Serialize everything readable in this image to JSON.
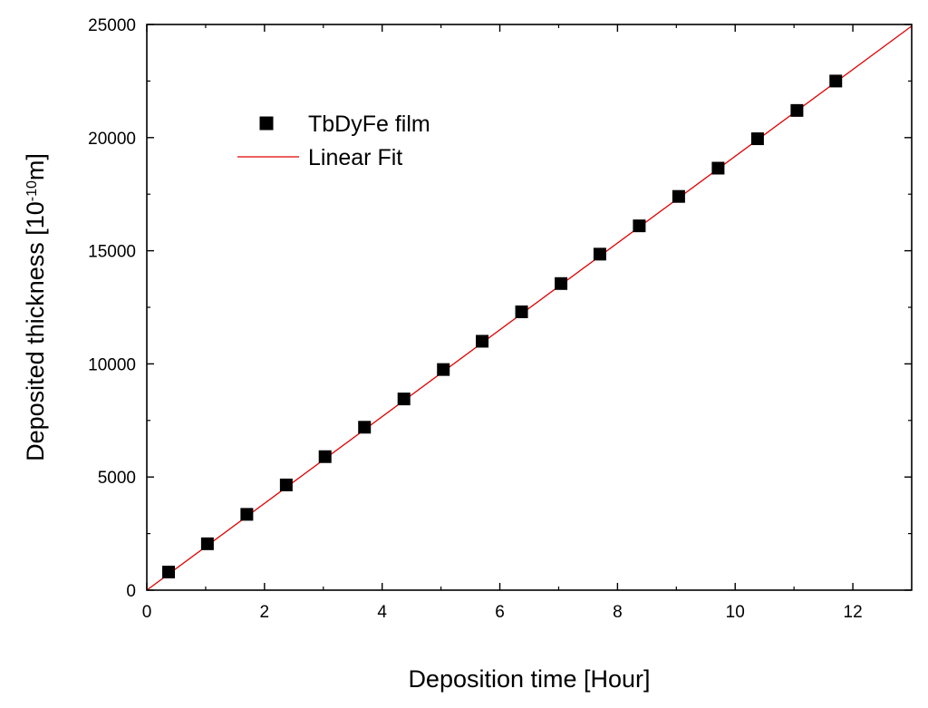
{
  "chart_data": {
    "type": "scatter",
    "xlabel": "Deposition time [Hour]",
    "ylabel": {
      "prefix": "Deposited thickness [10",
      "superscript": "-10",
      "suffix": "m]"
    },
    "xlim": [
      0,
      13
    ],
    "ylim": [
      0,
      25000
    ],
    "xticks": [
      0,
      2,
      4,
      6,
      8,
      10,
      12
    ],
    "yticks": [
      0,
      5000,
      10000,
      15000,
      20000,
      25000
    ],
    "xtick_labels": [
      "0",
      "2",
      "4",
      "6",
      "8",
      "10",
      "12"
    ],
    "ytick_labels": [
      "0",
      "5000",
      "10000",
      "15000",
      "20000",
      "25000"
    ],
    "grid": false,
    "legend": {
      "position": "top-left",
      "entries": [
        "TbDyFe film",
        "Linear Fit"
      ]
    },
    "series": [
      {
        "name": "TbDyFe film",
        "marker": "square",
        "color": "#000000",
        "x": [
          0.37,
          1.03,
          1.7,
          2.37,
          3.03,
          3.7,
          4.37,
          5.04,
          5.7,
          6.37,
          7.04,
          7.7,
          8.37,
          9.04,
          9.71,
          10.38,
          11.05,
          11.71
        ],
        "y": [
          800,
          2050,
          3350,
          4650,
          5900,
          7200,
          8450,
          9750,
          11000,
          12300,
          13550,
          14850,
          16100,
          17400,
          18650,
          19950,
          21200,
          22500
        ]
      },
      {
        "name": "Linear Fit",
        "type": "line",
        "color": "#e00000",
        "x": [
          0,
          13
        ],
        "y": [
          0,
          24930
        ]
      }
    ]
  }
}
